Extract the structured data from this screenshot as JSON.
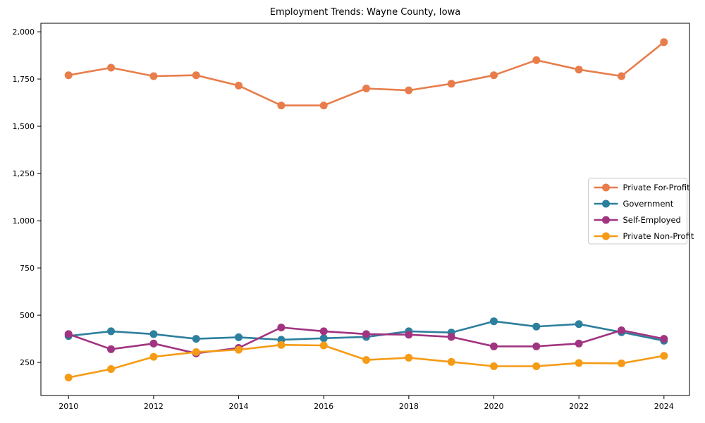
{
  "chart_data": {
    "type": "line",
    "title": "Employment Trends: Wayne County, Iowa",
    "xlabel": "",
    "ylabel": "",
    "x": [
      2010,
      2011,
      2012,
      2013,
      2014,
      2015,
      2016,
      2017,
      2018,
      2019,
      2020,
      2021,
      2022,
      2023,
      2024
    ],
    "series": [
      {
        "name": "Private For-Profit",
        "color": "#e87d4b",
        "values": [
          1770,
          1810,
          1765,
          1770,
          1715,
          1610,
          1610,
          1700,
          1690,
          1725,
          1770,
          1850,
          1800,
          1765,
          1945
        ]
      },
      {
        "name": "Government",
        "color": "#2d7f9e",
        "values": [
          390,
          415,
          400,
          375,
          383,
          370,
          378,
          385,
          415,
          408,
          468,
          440,
          453,
          410,
          365
        ]
      },
      {
        "name": "Self-Employed",
        "color": "#a13480",
        "values": [
          400,
          320,
          350,
          298,
          327,
          435,
          415,
          400,
          397,
          385,
          335,
          335,
          350,
          420,
          375
        ]
      },
      {
        "name": "Private Non-Profit",
        "color": "#f59b15",
        "values": [
          170,
          215,
          280,
          305,
          317,
          343,
          340,
          263,
          275,
          253,
          230,
          230,
          247,
          245,
          285
        ]
      }
    ],
    "xlim": [
      2009.35,
      2024.6
    ],
    "ylim": [
      75,
      2045
    ],
    "xticks": {
      "values": [
        2010,
        2012,
        2014,
        2016,
        2018,
        2020,
        2022,
        2024
      ],
      "labels": [
        "2010",
        "2012",
        "2014",
        "2016",
        "2018",
        "2020",
        "2022",
        "2024"
      ]
    },
    "yticks": {
      "values": [
        250,
        500,
        750,
        1000,
        1250,
        1500,
        1750,
        2000
      ],
      "labels": [
        "250",
        "500",
        "750",
        "1,000",
        "1,250",
        "1,500",
        "1,750",
        "2,000"
      ]
    },
    "grid": false,
    "legend_position": "center right",
    "axis_color": "#000000",
    "background_color": "#ffffff"
  }
}
